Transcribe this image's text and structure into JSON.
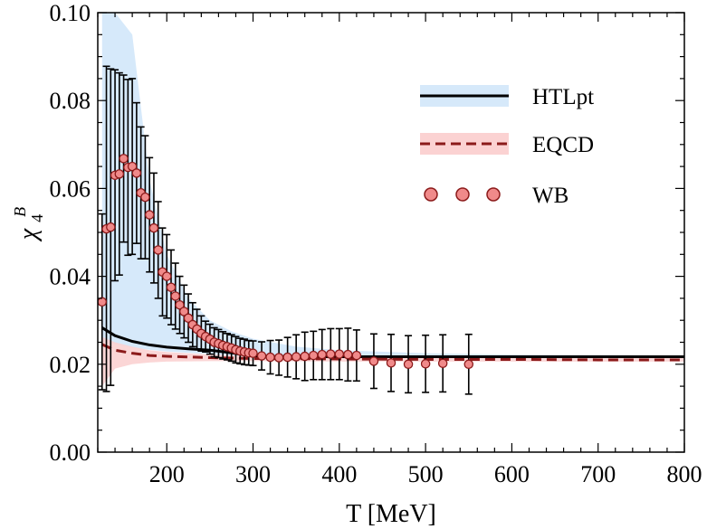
{
  "chart_data": {
    "type": "line",
    "xlabel": "T [MeV]",
    "ylabel": {
      "base": "χ",
      "sup": "B",
      "sub": "4"
    },
    "xlim": [
      120,
      800
    ],
    "ylim": [
      0.0,
      0.1
    ],
    "x_ticks": [
      200,
      300,
      400,
      500,
      600,
      700,
      800
    ],
    "x_tick_labels": [
      "200",
      "300",
      "400",
      "500",
      "600",
      "700",
      "800"
    ],
    "y_ticks": [
      0.0,
      0.02,
      0.04,
      0.06,
      0.08,
      0.1
    ],
    "y_tick_labels": [
      "0.00",
      "0.02",
      "0.04",
      "0.06",
      "0.08",
      "0.10"
    ],
    "grid": false,
    "legend_position": "top-right",
    "colors": {
      "htlpt_line": "#000000",
      "htlpt_band": "#d6e9fa",
      "eqcd_line": "#8b1a1a",
      "eqcd_band": "#fbd2d2",
      "wb_fill": "#f08a8a",
      "wb_edge": "#8b1a1a",
      "error_bar": "#000000"
    },
    "series": [
      {
        "name": "HTLpt",
        "kind": "line_band",
        "line_style": "solid",
        "x": [
          125,
          140,
          160,
          180,
          200,
          225,
          250,
          275,
          300,
          350,
          400,
          500,
          600,
          700,
          800
        ],
        "y": [
          0.0283,
          0.0265,
          0.0252,
          0.0244,
          0.0239,
          0.0235,
          0.0232,
          0.0226,
          0.0218,
          0.0217,
          0.0217,
          0.0217,
          0.0217,
          0.0217,
          0.0217
        ],
        "y_low": [
          0.025,
          0.0245,
          0.0238,
          0.0233,
          0.0229,
          0.0226,
          0.0223,
          0.0219,
          0.0215,
          0.0214,
          0.0214,
          0.0214,
          0.0214,
          0.0214,
          0.0214
        ],
        "y_high": [
          0.1,
          0.1,
          0.095,
          0.062,
          0.045,
          0.035,
          0.03,
          0.0275,
          0.0258,
          0.024,
          0.0232,
          0.0225,
          0.0222,
          0.0221,
          0.022
        ]
      },
      {
        "name": "EQCD",
        "kind": "line_band",
        "line_style": "dashed",
        "x": [
          125,
          140,
          160,
          180,
          200,
          250,
          300,
          400,
          500,
          600,
          700,
          800
        ],
        "y": [
          0.0245,
          0.0232,
          0.0225,
          0.022,
          0.0218,
          0.0215,
          0.0213,
          0.0212,
          0.0211,
          0.0211,
          0.021,
          0.021
        ],
        "y_low": [
          0.015,
          0.019,
          0.02,
          0.0204,
          0.0206,
          0.0207,
          0.0207,
          0.0206,
          0.0206,
          0.0206,
          0.0206,
          0.0206
        ],
        "y_high": [
          0.0262,
          0.025,
          0.024,
          0.0232,
          0.0228,
          0.0222,
          0.0218,
          0.0216,
          0.0215,
          0.0214,
          0.0214,
          0.0214
        ]
      },
      {
        "name": "WB",
        "kind": "points_errorbars",
        "x": [
          125,
          130,
          135,
          140,
          145,
          150,
          155,
          160,
          165,
          170,
          175,
          180,
          185,
          190,
          195,
          200,
          205,
          210,
          215,
          220,
          225,
          230,
          235,
          240,
          245,
          250,
          255,
          260,
          265,
          270,
          275,
          280,
          285,
          290,
          295,
          300,
          310,
          320,
          330,
          340,
          350,
          360,
          370,
          380,
          390,
          400,
          410,
          420,
          440,
          460,
          480,
          500,
          520,
          550
        ],
        "y": [
          0.0342,
          0.0508,
          0.0512,
          0.063,
          0.0633,
          0.0668,
          0.0648,
          0.065,
          0.0635,
          0.059,
          0.058,
          0.054,
          0.051,
          0.046,
          0.041,
          0.04,
          0.0375,
          0.0355,
          0.0335,
          0.032,
          0.0305,
          0.029,
          0.028,
          0.027,
          0.0263,
          0.0257,
          0.025,
          0.0247,
          0.0243,
          0.024,
          0.0237,
          0.0233,
          0.023,
          0.0228,
          0.0226,
          0.0225,
          0.0219,
          0.0216,
          0.0215,
          0.0216,
          0.0217,
          0.0218,
          0.022,
          0.0222,
          0.0223,
          0.0223,
          0.0222,
          0.022,
          0.0207,
          0.0203,
          0.02,
          0.0201,
          0.0202,
          0.02
        ],
        "err": [
          0.02,
          0.037,
          0.036,
          0.024,
          0.023,
          0.019,
          0.02,
          0.02,
          0.016,
          0.015,
          0.014,
          0.013,
          0.0125,
          0.011,
          0.01,
          0.0095,
          0.0085,
          0.0075,
          0.0065,
          0.006,
          0.0055,
          0.005,
          0.0045,
          0.004,
          0.0035,
          0.0034,
          0.0033,
          0.0032,
          0.0031,
          0.003,
          0.003,
          0.003,
          0.0029,
          0.0029,
          0.0028,
          0.0028,
          0.0032,
          0.0038,
          0.004,
          0.0045,
          0.005,
          0.0055,
          0.0055,
          0.0057,
          0.0058,
          0.0058,
          0.006,
          0.0058,
          0.0062,
          0.0065,
          0.0065,
          0.0065,
          0.0065,
          0.0068
        ]
      }
    ],
    "legend": [
      {
        "label": "HTLpt",
        "series": "HTLpt"
      },
      {
        "label": "EQCD",
        "series": "EQCD"
      },
      {
        "label": "WB",
        "series": "WB"
      }
    ]
  }
}
